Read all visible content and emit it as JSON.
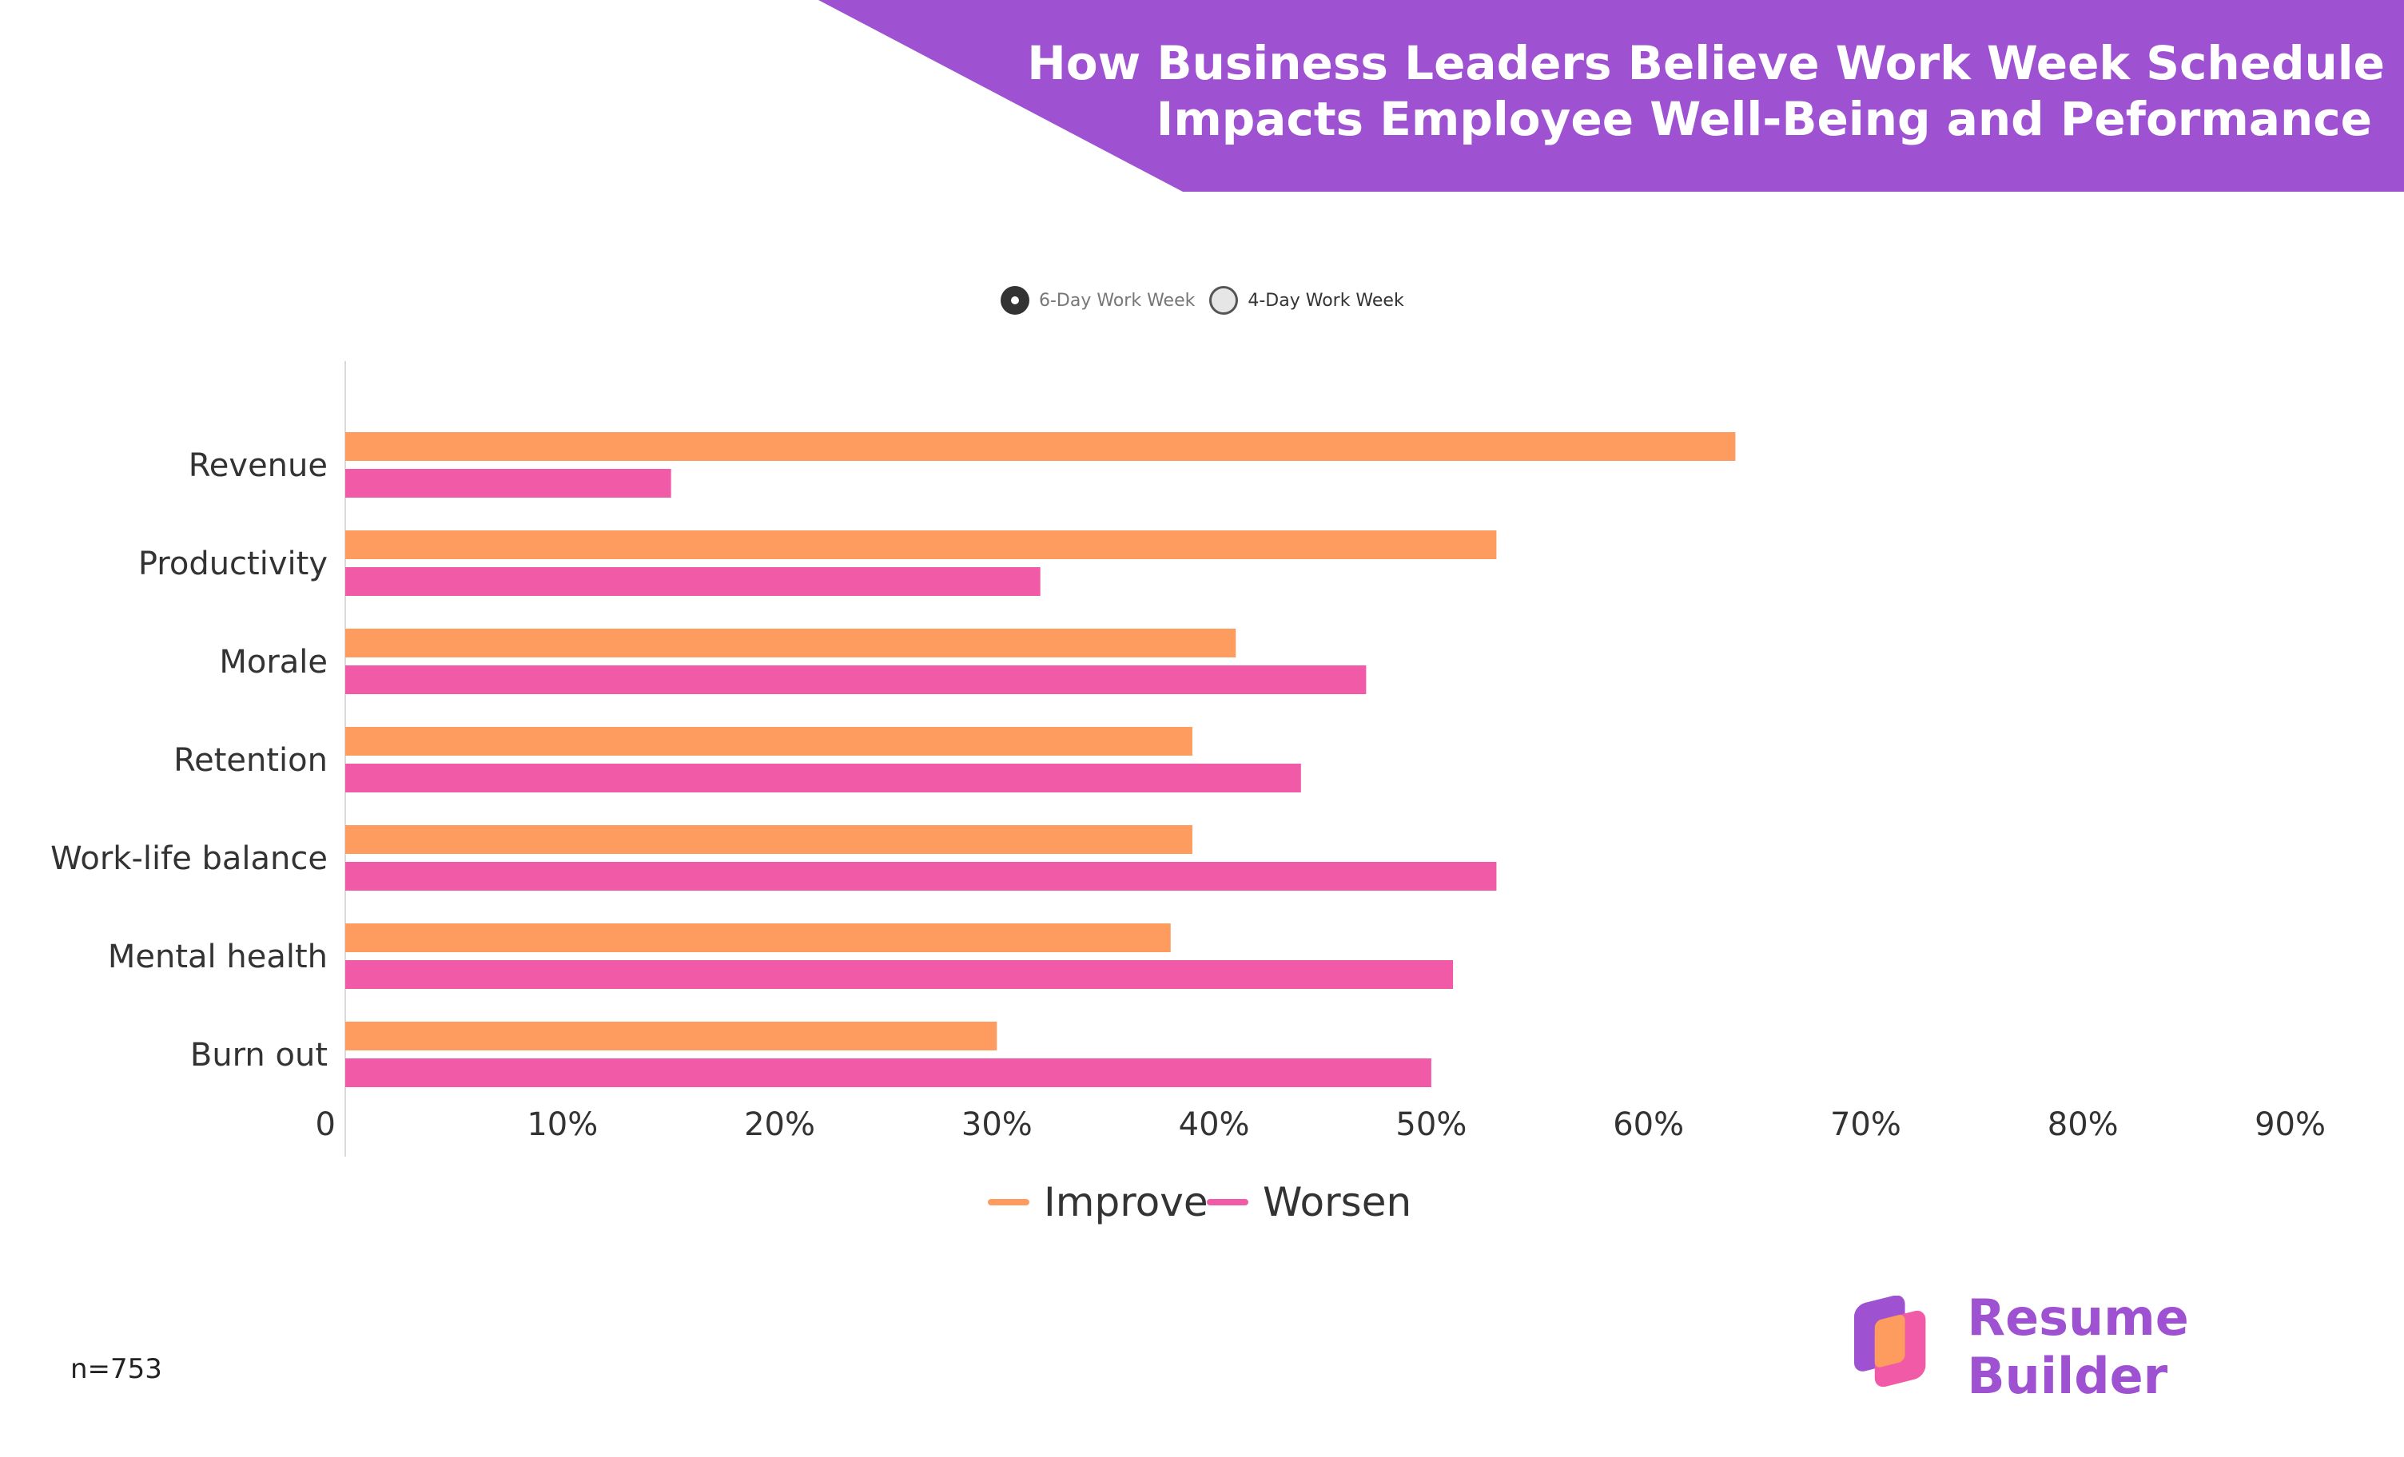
{
  "title": {
    "line1": "How Business Leaders Believe Work Week Schedule",
    "line2": "Impacts Employee Well-Being and Peformance"
  },
  "toggle": {
    "options": [
      {
        "label": "6-Day Work Week",
        "selected": true
      },
      {
        "label": "4-Day Work Week",
        "selected": false
      }
    ]
  },
  "footnote": "n=753",
  "brand": {
    "name": "Resume Builder",
    "icon": "resume-builder-logo"
  },
  "colors": {
    "banner": "#9e52d2",
    "improve": "#fd9c5e",
    "worsen": "#f05aa6",
    "text": "#333333",
    "brand_text": "#9e52d2"
  },
  "chart_data": {
    "type": "bar",
    "orientation": "horizontal",
    "categories": [
      "Revenue",
      "Productivity",
      "Morale",
      "Retention",
      "Work-life balance",
      "Mental health",
      "Burn out"
    ],
    "series": [
      {
        "name": "Improve",
        "values": [
          64,
          53,
          41,
          39,
          39,
          38,
          30
        ]
      },
      {
        "name": "Worsen",
        "values": [
          15,
          32,
          47,
          44,
          53,
          51,
          50
        ]
      }
    ],
    "xlim": [
      0,
      90
    ],
    "xticks": [
      "0",
      "10%",
      "20%",
      "30%",
      "40%",
      "50%",
      "60%",
      "70%",
      "80%",
      "90%"
    ],
    "tick_step": 10,
    "grid": false,
    "legend_position": "bottom"
  }
}
